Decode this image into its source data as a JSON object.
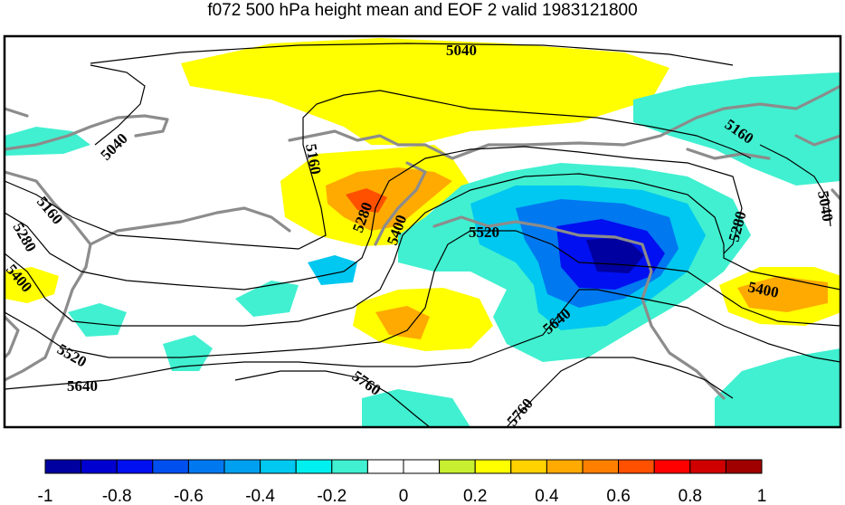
{
  "chart_data": {
    "type": "heatmap",
    "title": "f072 500 hPa height mean and EOF 2 valid 1983121800",
    "contour_levels": [
      5040,
      5160,
      5280,
      5400,
      5520,
      5640,
      5760
    ],
    "contour_labels": [
      "5040",
      "5040",
      "5160",
      "5160",
      "5160",
      "5280",
      "5280",
      "5280",
      "5400",
      "5400",
      "5400",
      "5520",
      "5520",
      "5640",
      "5640",
      "5760",
      "5760",
      "5040"
    ],
    "colorbar": {
      "range": [
        -1,
        1
      ],
      "step": 0.1,
      "tick_values": [
        -1,
        -0.8,
        -0.6,
        -0.4,
        -0.2,
        0,
        0.2,
        0.4,
        0.6,
        0.8,
        1
      ],
      "tick_labels": [
        "-1",
        "-0.8",
        "-0.6",
        "-0.4",
        "-0.2",
        "0",
        "0.2",
        "0.4",
        "0.6",
        "0.8",
        "1"
      ],
      "colors": [
        "#0000a0",
        "#0000d0",
        "#0010f0",
        "#0050f0",
        "#0078f0",
        "#00a0f0",
        "#00c8f0",
        "#00f0f0",
        "#40f0d0",
        "#ffffff",
        "#ffffff",
        "#c8f030",
        "#ffff00",
        "#ffd200",
        "#ffaa00",
        "#ff8000",
        "#ff5000",
        "#ff0000",
        "#d00000",
        "#a00000"
      ]
    }
  }
}
